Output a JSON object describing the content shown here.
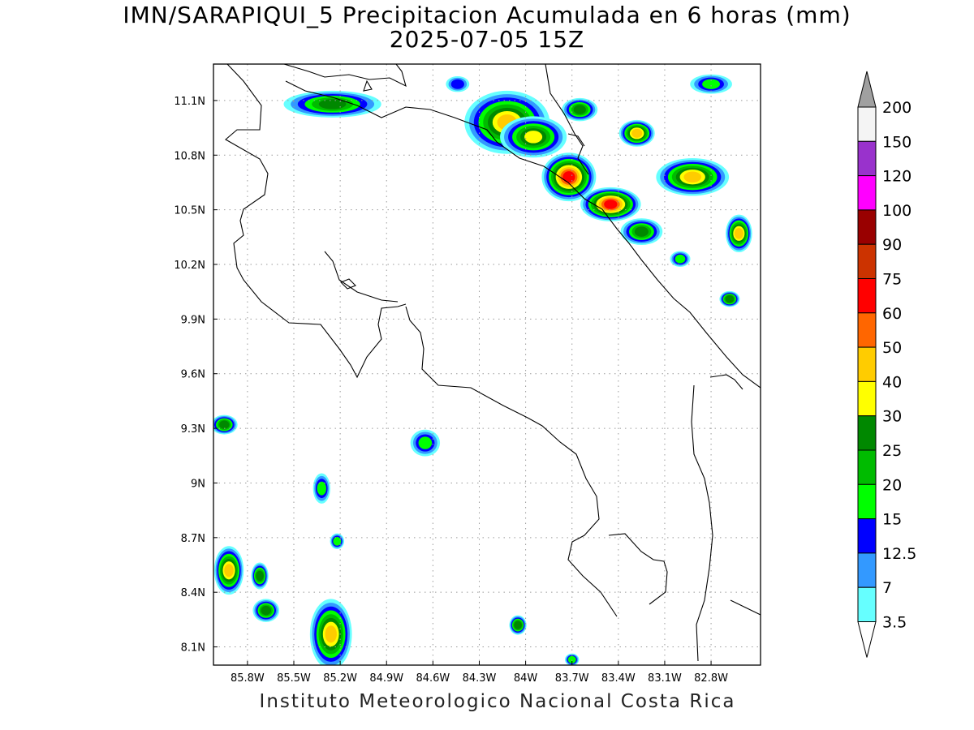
{
  "title": {
    "line1": "IMN/SARAPIQUI_5 Precipitacion Acumulada en 6 horas (mm)",
    "line2": "2025-07-05 15Z"
  },
  "footer": "Instituto Meteorologico Nacional Costa Rica",
  "map": {
    "lon_range": [
      -86.02,
      -82.48
    ],
    "lat_range": [
      8.0,
      11.3
    ],
    "grid": "dotted",
    "lat_ticks": [
      {
        "label": "11.1N",
        "value": 11.1
      },
      {
        "label": "10.8N",
        "value": 10.8
      },
      {
        "label": "10.5N",
        "value": 10.5
      },
      {
        "label": "10.2N",
        "value": 10.2
      },
      {
        "label": "9.9N",
        "value": 9.9
      },
      {
        "label": "9.6N",
        "value": 9.6
      },
      {
        "label": "9.3N",
        "value": 9.3
      },
      {
        "label": "9N",
        "value": 9.0
      },
      {
        "label": "8.7N",
        "value": 8.7
      },
      {
        "label": "8.4N",
        "value": 8.4
      },
      {
        "label": "8.1N",
        "value": 8.1
      }
    ],
    "lon_ticks": [
      {
        "label": "85.8W",
        "value": -85.8
      },
      {
        "label": "85.5W",
        "value": -85.5
      },
      {
        "label": "85.2W",
        "value": -85.2
      },
      {
        "label": "84.9W",
        "value": -84.9
      },
      {
        "label": "84.6W",
        "value": -84.6
      },
      {
        "label": "84.3W",
        "value": -84.3
      },
      {
        "label": "84W",
        "value": -84.0
      },
      {
        "label": "83.7W",
        "value": -83.7
      },
      {
        "label": "83.4W",
        "value": -83.4
      },
      {
        "label": "83.1W",
        "value": -83.1
      },
      {
        "label": "82.8W",
        "value": -82.8
      }
    ]
  },
  "colorbar": {
    "levels": [
      {
        "label": "200",
        "color": "#a0a0a0"
      },
      {
        "label": "150",
        "color": "#f4f4f4"
      },
      {
        "label": "120",
        "color": "#9932cc"
      },
      {
        "label": "100",
        "color": "#ff00ff"
      },
      {
        "label": "90",
        "color": "#990000"
      },
      {
        "label": "75",
        "color": "#cc3300"
      },
      {
        "label": "60",
        "color": "#ff0000"
      },
      {
        "label": "50",
        "color": "#ff6600"
      },
      {
        "label": "40",
        "color": "#ffcc00"
      },
      {
        "label": "30",
        "color": "#ffff00"
      },
      {
        "label": "25",
        "color": "#008800"
      },
      {
        "label": "20",
        "color": "#00bb00"
      },
      {
        "label": "15",
        "color": "#00ff00"
      },
      {
        "label": "12.5",
        "color": "#0000ff"
      },
      {
        "label": "7",
        "color": "#3399ff"
      },
      {
        "label": "3.5",
        "color": "#66ffff"
      }
    ],
    "bottom_color": "#ffffff"
  },
  "precip_cells": [
    {
      "lon": -85.25,
      "lat": 11.08,
      "rx": 0.3,
      "ry": 0.06,
      "max": 25
    },
    {
      "lon": -84.12,
      "lat": 10.98,
      "rx": 0.26,
      "ry": 0.16,
      "max": 40
    },
    {
      "lon": -83.95,
      "lat": 10.9,
      "rx": 0.2,
      "ry": 0.1,
      "max": 30
    },
    {
      "lon": -83.72,
      "lat": 10.68,
      "rx": 0.16,
      "ry": 0.12,
      "max": 60
    },
    {
      "lon": -83.45,
      "lat": 10.53,
      "rx": 0.18,
      "ry": 0.08,
      "max": 60
    },
    {
      "lon": -83.25,
      "lat": 10.38,
      "rx": 0.12,
      "ry": 0.06,
      "max": 25
    },
    {
      "lon": -82.92,
      "lat": 10.68,
      "rx": 0.22,
      "ry": 0.09,
      "max": 40
    },
    {
      "lon": -83.28,
      "lat": 10.92,
      "rx": 0.1,
      "ry": 0.06,
      "max": 40
    },
    {
      "lon": -82.62,
      "lat": 10.37,
      "rx": 0.07,
      "ry": 0.09,
      "max": 40
    },
    {
      "lon": -83.65,
      "lat": 11.05,
      "rx": 0.1,
      "ry": 0.05,
      "max": 25
    },
    {
      "lon": -83.0,
      "lat": 10.23,
      "rx": 0.05,
      "ry": 0.03,
      "max": 15
    },
    {
      "lon": -82.8,
      "lat": 11.19,
      "rx": 0.12,
      "ry": 0.04,
      "max": 15
    },
    {
      "lon": -82.68,
      "lat": 10.01,
      "rx": 0.05,
      "ry": 0.03,
      "max": 25
    },
    {
      "lon": -85.92,
      "lat": 8.52,
      "rx": 0.08,
      "ry": 0.12,
      "max": 40
    },
    {
      "lon": -85.26,
      "lat": 8.17,
      "rx": 0.12,
      "ry": 0.18,
      "max": 40
    },
    {
      "lon": -85.68,
      "lat": 8.3,
      "rx": 0.07,
      "ry": 0.05,
      "max": 25
    },
    {
      "lon": -85.72,
      "lat": 8.49,
      "rx": 0.04,
      "ry": 0.06,
      "max": 25
    },
    {
      "lon": -85.95,
      "lat": 9.32,
      "rx": 0.07,
      "ry": 0.04,
      "max": 25
    },
    {
      "lon": -84.65,
      "lat": 9.22,
      "rx": 0.08,
      "ry": 0.06,
      "max": 15
    },
    {
      "lon": -84.05,
      "lat": 8.22,
      "rx": 0.04,
      "ry": 0.04,
      "max": 25
    },
    {
      "lon": -85.32,
      "lat": 8.97,
      "rx": 0.04,
      "ry": 0.07,
      "max": 15
    },
    {
      "lon": -85.22,
      "lat": 8.68,
      "rx": 0.03,
      "ry": 0.03,
      "max": 15
    },
    {
      "lon": -83.7,
      "lat": 8.03,
      "rx": 0.03,
      "ry": 0.02,
      "max": 15
    },
    {
      "lon": -84.44,
      "lat": 11.19,
      "rx": 0.06,
      "ry": 0.03,
      "max": 12.5
    }
  ]
}
